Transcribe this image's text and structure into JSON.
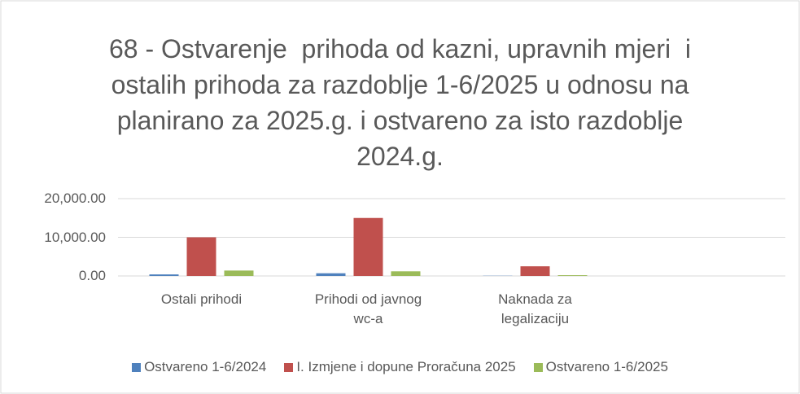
{
  "chart_data": {
    "type": "bar",
    "title": "68 - Ostvarenje  prihoda od kazni, upravnih mjeri  i ostalih prihoda za razdoblje 1-6/2025 u odnosu na planirano za 2025.g. i ostvareno za isto razdoblje 2024.g.",
    "categories": [
      "Ostali prihodi",
      "Prihodi od javnog wc-a",
      "Naknada za legalizaciju",
      null
    ],
    "series": [
      {
        "name": "Ostvareno 1-6/2024",
        "color": "#4f81bd",
        "values": [
          400,
          700,
          50,
          null
        ]
      },
      {
        "name": "I. Izmjene i dopune Proračuna 2025",
        "color": "#c0504d",
        "values": [
          10000,
          15000,
          2500,
          null
        ]
      },
      {
        "name": "Ostvareno 1-6/2025",
        "color": "#9bbb59",
        "values": [
          1400,
          1200,
          200,
          null
        ]
      }
    ],
    "ylim": [
      0,
      20000
    ],
    "yticks": [
      {
        "value": 0,
        "label": "0.00"
      },
      {
        "value": 10000,
        "label": "10,000.00"
      },
      {
        "value": 20000,
        "label": "20,000.00"
      }
    ],
    "grid": true,
    "legend": "bottom"
  }
}
